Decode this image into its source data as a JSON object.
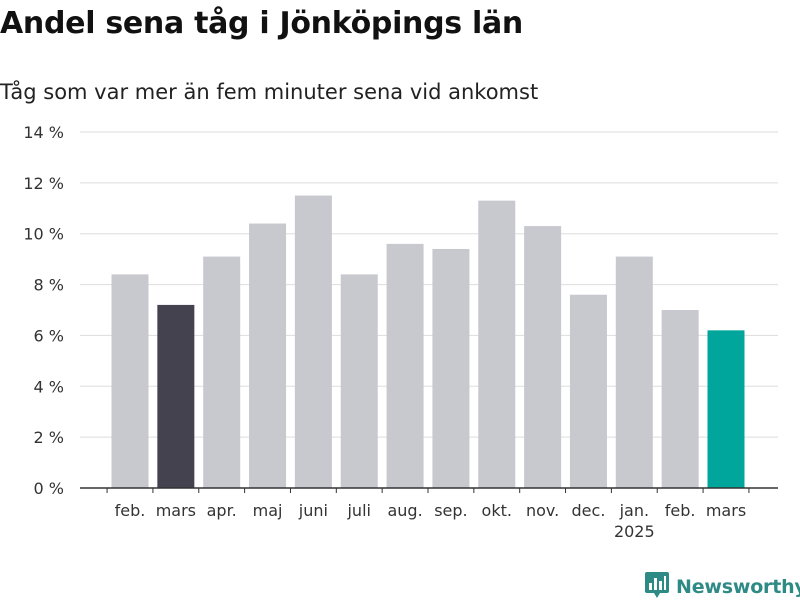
{
  "header": {
    "title": "Andel sena tåg i Jönköpings län",
    "subtitle": "Tåg som var mer än fem minuter sena vid ankomst"
  },
  "brand": {
    "name": "Newsworthy",
    "icon": "chart-bubble-icon",
    "color": "#2e8a84"
  },
  "chart_data": {
    "type": "bar",
    "title": "Andel sena tåg i Jönköpings län",
    "subtitle": "Tåg som var mer än fem minuter sena vid ankomst",
    "categories": [
      "feb.",
      "mars",
      "apr.",
      "maj",
      "juni",
      "juli",
      "aug.",
      "sep.",
      "okt.",
      "nov.",
      "dec.",
      "jan.",
      "feb.",
      "mars"
    ],
    "category_sublabels": [
      "",
      "",
      "",
      "",
      "",
      "",
      "",
      "",
      "",
      "",
      "",
      "2025",
      "",
      ""
    ],
    "values": [
      8.4,
      7.2,
      9.1,
      10.4,
      11.5,
      8.4,
      9.6,
      9.4,
      11.3,
      10.3,
      7.6,
      9.1,
      7.0,
      6.2
    ],
    "bar_colors": [
      "#c8c8cf",
      "#43424e",
      "#c8c8cf",
      "#c8c8cf",
      "#c8c8cf",
      "#c8c8cf",
      "#c8c8cf",
      "#c8c8cf",
      "#c8c8cf",
      "#c8c8cf",
      "#c8c8cf",
      "#c8c8cf",
      "#c8c8cf",
      "#00a59b"
    ],
    "yticks": [
      0,
      2,
      4,
      6,
      8,
      10,
      12,
      14
    ],
    "ytick_labels": [
      "0 %",
      "2 %",
      "4 %",
      "6 %",
      "8 %",
      "10 %",
      "12 %",
      "14 %"
    ],
    "ylim": [
      0,
      14
    ],
    "xlabel": "",
    "ylabel": "",
    "grid": true,
    "colors": {
      "default": "#c8c8cf",
      "comparison": "#43424e",
      "highlight": "#00a59b",
      "grid": "#dddddd",
      "axis": "#333333"
    }
  }
}
